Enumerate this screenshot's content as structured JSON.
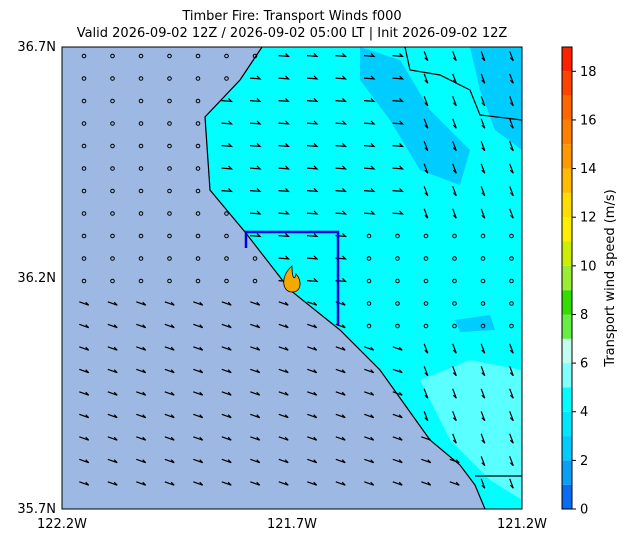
{
  "map": {
    "title": [
      "Timber Fire: Transport Winds f000",
      "Valid 2026-09-02 12Z / 2026-09-02 05:00 LT | Init 2026-09-02 12Z"
    ],
    "x_ticks": [
      "122.2W",
      "121.7W",
      "121.2W"
    ],
    "y_ticks": [
      "36.7N",
      "36.2N",
      "35.7N"
    ],
    "colorbar": {
      "label": "Transport wind speed (m/s)",
      "range": [
        0,
        19
      ],
      "ticks": [
        0,
        2,
        4,
        6,
        8,
        10,
        12,
        14,
        16,
        18
      ],
      "colors": [
        "#0a6cf0",
        "#0a9ff5",
        "#00ccff",
        "#00e6ff",
        "#00ffff",
        "#80ffff",
        "#c0fff0",
        "#66ee44",
        "#33dd00",
        "#99ee33",
        "#ccee00",
        "#ffee00",
        "#ffdd00",
        "#ffbb00",
        "#ff9900",
        "#ff8000",
        "#ff6600",
        "#ff4400",
        "#ff2200"
      ]
    }
  }
}
